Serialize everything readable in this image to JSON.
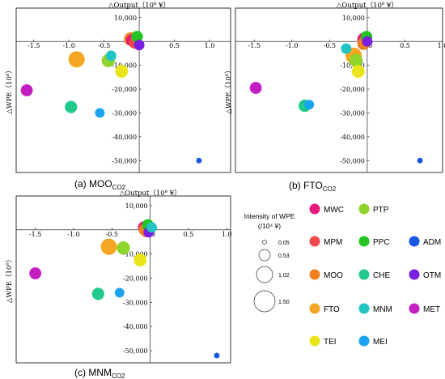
{
  "series_colors": {
    "MWC": "#e8197a",
    "PTP": "#8fd42a",
    "MPM": "#f04a4a",
    "PPC": "#22c322",
    "ADM": "#1a56e0",
    "MOO": "#f07f20",
    "CHE": "#22c98a",
    "OTM": "#7a1ee0",
    "FTO": "#f5a623",
    "MNM": "#22c4c4",
    "MET": "#c21ec2",
    "TEI": "#e8e61a",
    "MEI": "#1aa3f0"
  },
  "legend": {
    "items": [
      "MWC",
      "PTP",
      "MPM",
      "PPC",
      "ADM",
      "MOO",
      "CHE",
      "OTM",
      "FTO",
      "MNM",
      "MET",
      "TEI",
      "MEI"
    ],
    "size_title_1": "Intensity of WPE",
    "size_title_2": "(/10⁴ ¥)",
    "size_values": [
      0.05,
      0.53,
      1.02,
      1.5
    ],
    "size_labels": [
      "0.05",
      "0.53",
      "1.02",
      "1.50"
    ]
  },
  "chart_data": [
    {
      "type": "scatter",
      "caption_main": "(a) MOO",
      "caption_sub": "CO2",
      "xlabel": "△Output（10⁸ ¥）",
      "ylabel": "△WPE（10⁸）",
      "xlim": [
        -1.75,
        1.3
      ],
      "ylim": [
        -55000,
        14000
      ],
      "xticks": [
        -1.5,
        -1.0,
        -0.5,
        0.0,
        0.5,
        1.0
      ],
      "xtick_labels": [
        "-1.5",
        "-1.0",
        "-0.5",
        "0.0",
        "0.5",
        "1.0"
      ],
      "yticks": [
        10000,
        0,
        -10000,
        -20000,
        -30000,
        -40000,
        -50000
      ],
      "ytick_labels": [
        "10,000",
        "0",
        "-10,000",
        "-20,000",
        "-30,000",
        "-40,000",
        "-50,000"
      ],
      "points": [
        {
          "sector": "MOO",
          "x": -0.12,
          "y": 1000,
          "size": 0.9
        },
        {
          "sector": "MWC",
          "x": -0.1,
          "y": 500,
          "size": 0.7
        },
        {
          "sector": "MPM",
          "x": -0.06,
          "y": -500,
          "size": 0.7
        },
        {
          "sector": "PPC",
          "x": -0.03,
          "y": 2000,
          "size": 0.6
        },
        {
          "sector": "OTM",
          "x": 0.0,
          "y": -1500,
          "size": 0.45
        },
        {
          "sector": "FTO",
          "x": -0.89,
          "y": -7500,
          "size": 1.45
        },
        {
          "sector": "PTP",
          "x": -0.44,
          "y": -8000,
          "size": 0.85
        },
        {
          "sector": "MNM",
          "x": -0.4,
          "y": -6000,
          "size": 0.45
        },
        {
          "sector": "TEI",
          "x": -0.25,
          "y": -12500,
          "size": 0.8
        },
        {
          "sector": "MET",
          "x": -1.6,
          "y": -20500,
          "size": 0.65
        },
        {
          "sector": "CHE",
          "x": -0.97,
          "y": -27500,
          "size": 0.7
        },
        {
          "sector": "MEI",
          "x": -0.56,
          "y": -30000,
          "size": 0.35
        },
        {
          "sector": "ADM",
          "x": 0.85,
          "y": -50000,
          "size": 0.05
        }
      ]
    },
    {
      "type": "scatter",
      "caption_main": "(b) FTO",
      "caption_sub": "CO2",
      "xlabel": "△Output（10⁸ ¥）",
      "ylabel": "△WPE（10⁸）",
      "xlim": [
        -1.75,
        1.0
      ],
      "ylim": [
        -55000,
        14000
      ],
      "xticks": [
        -1.5,
        -1.0,
        -0.5,
        0.0,
        0.5,
        1.0
      ],
      "xtick_labels": [
        "-1.5",
        "-1.0",
        "-0.5",
        "0.0",
        "0.5",
        "1.0"
      ],
      "yticks": [
        10000,
        0,
        -10000,
        -20000,
        -30000,
        -40000,
        -50000
      ],
      "ytick_labels": [
        "10,000",
        "0",
        "-10,000",
        "-20,000",
        "-30,000",
        "-40,000",
        "-50,000"
      ],
      "points": [
        {
          "sector": "MWC",
          "x": -0.05,
          "y": 1000,
          "size": 0.7
        },
        {
          "sector": "MPM",
          "x": -0.04,
          "y": -500,
          "size": 0.7
        },
        {
          "sector": "PPC",
          "x": -0.01,
          "y": 2000,
          "size": 0.6
        },
        {
          "sector": "OTM",
          "x": 0.0,
          "y": 0,
          "size": 0.45
        },
        {
          "sector": "MOO",
          "x": -0.05,
          "y": -1000,
          "size": 0.7
        },
        {
          "sector": "FTO",
          "x": -0.18,
          "y": -6000,
          "size": 1.45
        },
        {
          "sector": "PTP",
          "x": -0.15,
          "y": -8000,
          "size": 0.85
        },
        {
          "sector": "MNM",
          "x": -0.28,
          "y": -3000,
          "size": 0.45
        },
        {
          "sector": "TEI",
          "x": -0.12,
          "y": -12500,
          "size": 0.8
        },
        {
          "sector": "MET",
          "x": -1.48,
          "y": -19500,
          "size": 0.65
        },
        {
          "sector": "CHE",
          "x": -0.83,
          "y": -27000,
          "size": 0.7
        },
        {
          "sector": "MEI",
          "x": -0.77,
          "y": -26500,
          "size": 0.35
        },
        {
          "sector": "ADM",
          "x": 0.7,
          "y": -50000,
          "size": 0.05
        }
      ]
    },
    {
      "type": "scatter",
      "caption_main": "(c) MNM",
      "caption_sub": "CO2",
      "xlabel": "△Output（10⁸ ¥）",
      "ylabel": "△WPE（10⁸）",
      "xlim": [
        -1.75,
        1.05
      ],
      "ylim": [
        -55000,
        14000
      ],
      "xticks": [
        -1.5,
        -1.0,
        -0.5,
        0.0,
        0.5,
        1.0
      ],
      "xtick_labels": [
        "-1.5",
        "-1.0",
        "-0.5",
        "0.0",
        "0.5",
        "1.0"
      ],
      "yticks": [
        10000,
        0,
        -10000,
        -20000,
        -30000,
        -40000,
        -50000
      ],
      "ytick_labels": [
        "10,000",
        "0",
        "-10,000",
        "-20,000",
        "-30,000",
        "-40,000",
        "-50,000"
      ],
      "points": [
        {
          "sector": "MWC",
          "x": -0.08,
          "y": 1000,
          "size": 0.7
        },
        {
          "sector": "MPM",
          "x": -0.05,
          "y": -500,
          "size": 0.7
        },
        {
          "sector": "MOO",
          "x": -0.07,
          "y": 0,
          "size": 0.7
        },
        {
          "sector": "PPC",
          "x": -0.03,
          "y": 2000,
          "size": 0.6
        },
        {
          "sector": "OTM",
          "x": -0.02,
          "y": -1000,
          "size": 0.45
        },
        {
          "sector": "MNM",
          "x": 0.02,
          "y": 1000,
          "size": 0.45
        },
        {
          "sector": "FTO",
          "x": -0.54,
          "y": -7000,
          "size": 1.45
        },
        {
          "sector": "PTP",
          "x": -0.35,
          "y": -7500,
          "size": 0.85
        },
        {
          "sector": "TEI",
          "x": -0.13,
          "y": -12500,
          "size": 0.8
        },
        {
          "sector": "MET",
          "x": -1.5,
          "y": -18000,
          "size": 0.65
        },
        {
          "sector": "CHE",
          "x": -0.68,
          "y": -26500,
          "size": 0.7
        },
        {
          "sector": "MEI",
          "x": -0.4,
          "y": -26000,
          "size": 0.35
        },
        {
          "sector": "ADM",
          "x": 0.87,
          "y": -52000,
          "size": 0.05
        }
      ]
    }
  ]
}
